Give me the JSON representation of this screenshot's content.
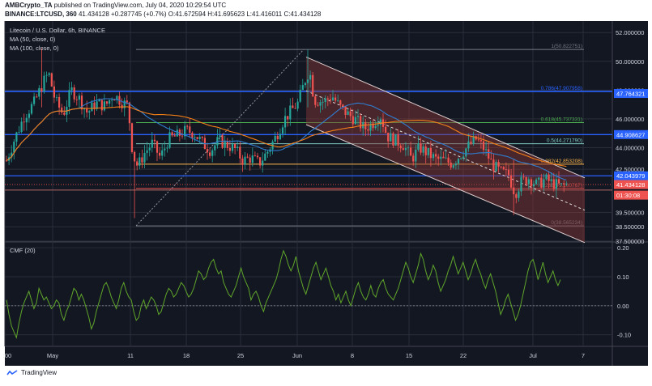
{
  "header": {
    "line1_user": "AMBCrypto_TA",
    "line1_rest": " published on TradingView.com, July 04, 2020 10:29:54 UTC",
    "symbol": "BINANCE:LTCUSD, 360",
    "price": "41.434128",
    "change": "+0.287745 (+0.7%)",
    "open": "O:41.672594",
    "high": "H:41.695623",
    "low": "L:41.416011",
    "close": "C:41.434128"
  },
  "legend": {
    "title": "Litecoin / U.S. Dollar, 6h, BINANCE",
    "ma50": "MA (50, close, 0)",
    "ma100": "MA (100, close, 0)",
    "cmf": "CMF (20)"
  },
  "footer": {
    "brand": "TradingView"
  },
  "colors": {
    "bg": "#131722",
    "grid": "#2a2e39",
    "up": "#26a69a",
    "down": "#ef5350",
    "ma50": "#2f7dd1",
    "ma100": "#f57f17",
    "cmf": "#5fa52a",
    "channel": "#8b3a3a"
  },
  "chart_data": [
    {
      "type": "candlestick",
      "title": "Litecoin / U.S. Dollar, 6h, BINANCE",
      "x_ticks": [
        ":00",
        "May",
        "11",
        "18",
        "25",
        "Jun",
        "8",
        "15",
        "22",
        "Jul",
        "7"
      ],
      "y_ticks": [
        "52.000000",
        "50.000000",
        "48.000000",
        "46.000000",
        "44.000000",
        "42.500000",
        "39.500000",
        "38.500000",
        "37.500000"
      ],
      "ylim": [
        37.5,
        52.8
      ],
      "price_labels": [
        {
          "text": "47.764321",
          "value": 47.764321
        },
        {
          "text": "44.908627",
          "value": 44.908627
        },
        {
          "text": "42.043979",
          "value": 42.043979
        },
        {
          "text": "41.434128",
          "value": 41.434128
        },
        {
          "text": "01:30:08",
          "value": 40.7
        }
      ],
      "fibonacci": [
        {
          "label": "1(50.822751)",
          "value": 50.822751
        },
        {
          "label": "0.786(47.907958)",
          "value": 47.907958
        },
        {
          "label": "0.618(45.737331)",
          "value": 45.737331
        },
        {
          "label": "0.5(44.271790)",
          "value": 44.27179
        },
        {
          "label": "0.382(42.853208)",
          "value": 42.853208
        },
        {
          "label": "0.236(41.160767)",
          "value": 41.160767
        },
        {
          "label": "0(38.565234)",
          "value": 38.565234
        }
      ],
      "ohlc_last": {
        "open": 41.672594,
        "high": 41.695623,
        "low": 41.416011,
        "close": 41.434128
      },
      "series": [
        {
          "name": "MA (50, close, 0)"
        },
        {
          "name": "MA (100, close, 0)"
        }
      ],
      "channel": {
        "upper": [
          [
            0.0,
            50.3
          ],
          [
            1.0,
            41.9
          ]
        ],
        "lower": [
          [
            0.0,
            45.6
          ],
          [
            1.0,
            37.4
          ]
        ]
      }
    },
    {
      "type": "line",
      "title": "CMF (20)",
      "y_ticks": [
        "0.20",
        "0.10",
        "0.00",
        "-0.10"
      ],
      "ylim": [
        -0.14,
        0.22
      ],
      "series": [
        {
          "name": "CMF (20)",
          "values": [
            0.02,
            -0.03,
            -0.07,
            -0.09,
            -0.11,
            -0.06,
            -0.02,
            0.01,
            0.03,
            0.05,
            0.02,
            -0.01,
            0.01,
            0.06,
            0.04,
            0.02,
            0.03,
            0.01,
            -0.01,
            0.0,
            0.02,
            0.01,
            -0.03,
            -0.05,
            -0.02,
            0.0,
            0.03,
            0.06,
            0.05,
            0.02,
            0.04,
            0.02,
            -0.01,
            -0.04,
            -0.08,
            -0.06,
            -0.02,
            0.01,
            0.04,
            0.07,
            0.08,
            0.06,
            0.03,
            0.01,
            -0.01,
            0.02,
            0.06,
            0.08,
            0.05,
            0.03,
            0.02,
            -0.02,
            -0.05,
            -0.04,
            0.0,
            0.02,
            -0.01,
            0.01,
            0.03,
            0.02,
            0.0,
            -0.03,
            -0.02,
            0.01,
            0.04,
            0.06,
            0.05,
            0.03,
            0.04,
            0.06,
            0.08,
            0.07,
            0.05,
            0.03,
            0.04,
            0.06,
            0.09,
            0.12,
            0.11,
            0.09,
            0.1,
            0.13,
            0.15,
            0.16,
            0.13,
            0.11,
            0.12,
            0.08,
            0.06,
            0.04,
            0.03,
            0.05,
            0.07,
            0.1,
            0.13,
            0.1,
            0.08,
            0.06,
            0.02,
            0.04,
            0.05,
            0.03,
            0.0,
            -0.02,
            0.01,
            0.03,
            0.05,
            0.07,
            0.09,
            0.12,
            0.16,
            0.19,
            0.17,
            0.14,
            0.12,
            0.14,
            0.17,
            0.12,
            0.09,
            0.06,
            0.04,
            0.07,
            0.1,
            0.13,
            0.15,
            0.12,
            0.09,
            0.11,
            0.13,
            0.1,
            0.07,
            0.05,
            0.02,
            0.04,
            0.01,
            0.03,
            0.05,
            0.02,
            0.0,
            0.03,
            0.06,
            0.08,
            0.05,
            0.03,
            0.02,
            0.04,
            0.07,
            0.04,
            0.03,
            0.06,
            0.08,
            0.09,
            0.06,
            0.04,
            0.03,
            0.02,
            0.04,
            0.06,
            0.09,
            0.12,
            0.15,
            0.13,
            0.1,
            0.08,
            0.11,
            0.14,
            0.18,
            0.16,
            0.12,
            0.09,
            0.11,
            0.14,
            0.12,
            0.08,
            0.05,
            0.07,
            0.09,
            0.12,
            0.14,
            0.17,
            0.14,
            0.11,
            0.13,
            0.15,
            0.12,
            0.09,
            0.11,
            0.14,
            0.16,
            0.13,
            0.11,
            0.08,
            0.06,
            0.09,
            0.11,
            0.08,
            0.05,
            0.01,
            -0.03,
            -0.01,
            0.02,
            0.04,
            0.01,
            -0.02,
            -0.05,
            -0.03,
            0.0,
            0.04,
            0.08,
            0.12,
            0.15,
            0.16,
            0.13,
            0.09,
            0.12,
            0.15,
            0.11,
            0.08,
            0.1,
            0.12,
            0.09,
            0.07,
            0.09
          ]
        }
      ]
    }
  ]
}
